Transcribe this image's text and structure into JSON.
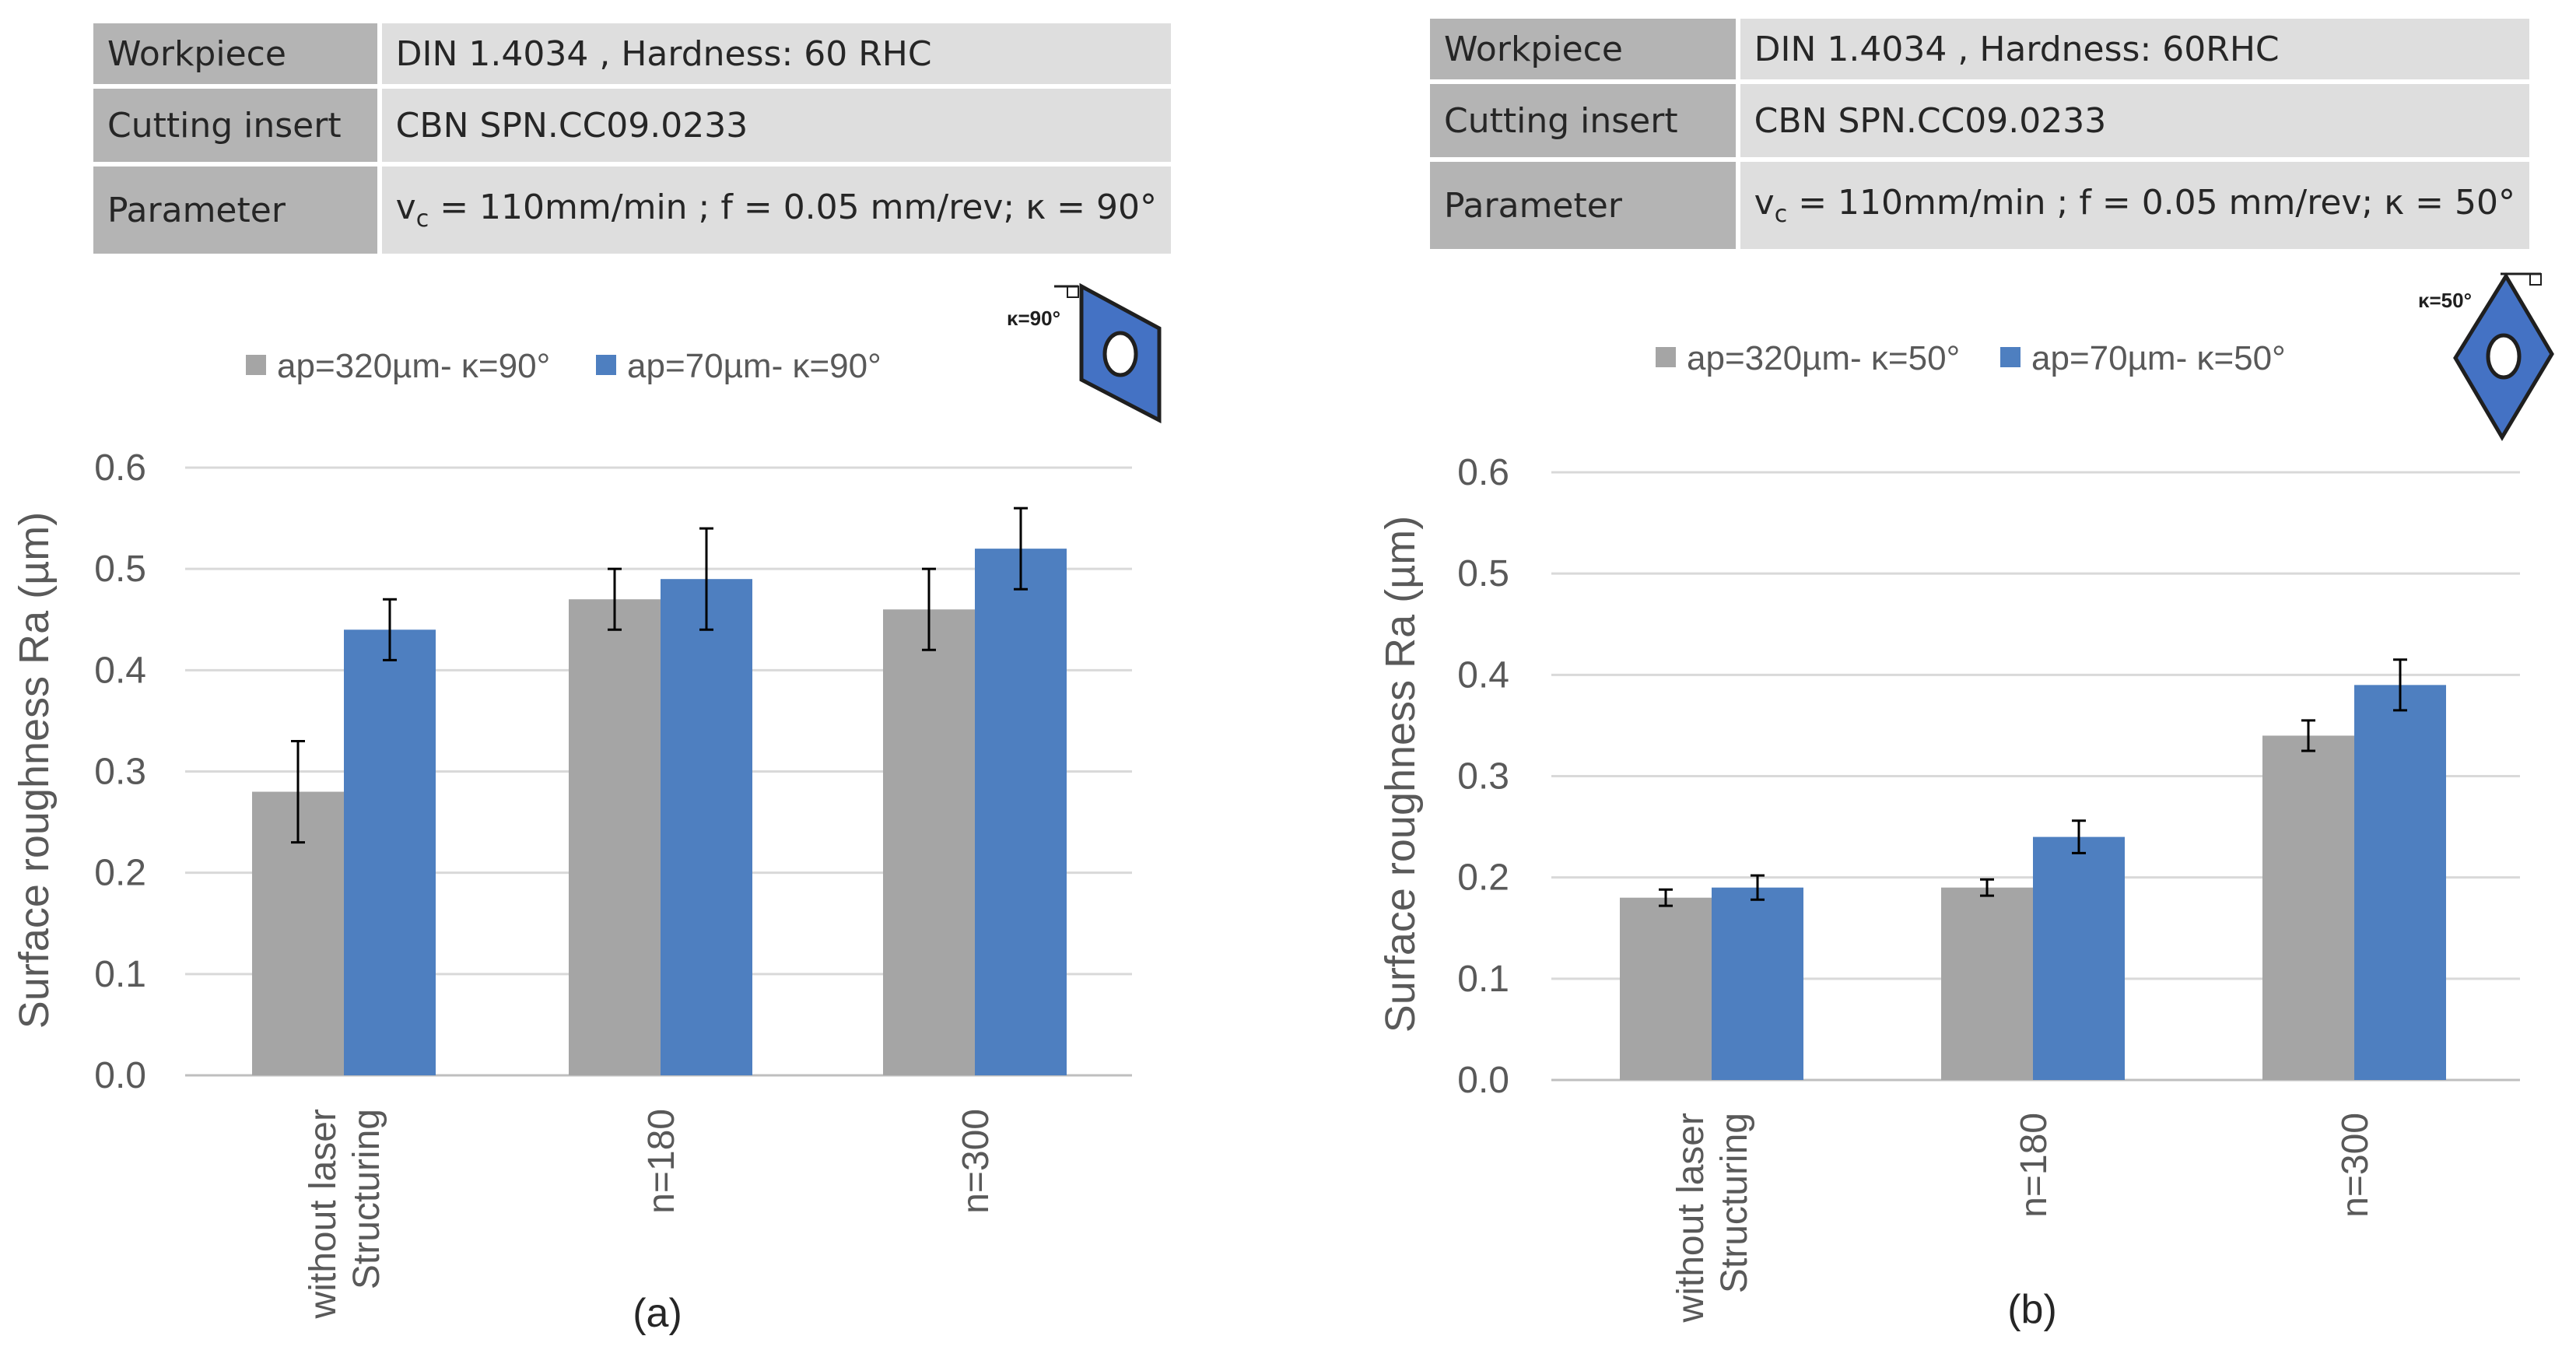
{
  "colors": {
    "series1": "#a5a5a5",
    "series2": "#4e7fc0",
    "grid": "#d9d9d9",
    "axis": "#bfbfbf",
    "text": "#595959",
    "table_key_bg": "#b4b4b4",
    "table_val_bg": "#dedede",
    "insert_fill": "#4472c4"
  },
  "panels": [
    {
      "table": {
        "rows": [
          {
            "key": "Workpiece",
            "value": "DIN 1.4034 , Hardness: 60 RHC"
          },
          {
            "key": "Cutting insert",
            "value": "CBN SPN.CC09.0233"
          },
          {
            "key": "Parameter",
            "v_symbol": "v",
            "v_sub": "c",
            "value": " = 110mm/min ; f = 0.05 mm/rev; κ = 90°"
          }
        ]
      },
      "insert_label": "κ=90°",
      "chart_data": {
        "type": "bar",
        "title": "",
        "caption": "(a)",
        "ylabel": "Surface roughness Ra (µm)",
        "xlabel": "",
        "ylim": [
          0.0,
          0.6
        ],
        "y_ticks": [
          "0.0",
          "0.1",
          "0.2",
          "0.3",
          "0.4",
          "0.5",
          "0.6"
        ],
        "legend_position": "top",
        "categories": [
          [
            "without laser",
            "Structuring"
          ],
          [
            "n=180"
          ],
          [
            "n=300"
          ]
        ],
        "series": [
          {
            "name": "ap=320µm- κ=90°",
            "values": [
              0.28,
              0.47,
              0.46
            ],
            "errors": [
              0.05,
              0.03,
              0.04
            ]
          },
          {
            "name": "ap=70µm- κ=90°",
            "values": [
              0.44,
              0.49,
              0.52
            ],
            "errors": [
              0.03,
              0.05,
              0.04
            ]
          }
        ]
      }
    },
    {
      "table": {
        "rows": [
          {
            "key": "Workpiece",
            "value": "DIN 1.4034 , Hardness: 60RHC"
          },
          {
            "key": "Cutting insert",
            "value": "CBN SPN.CC09.0233"
          },
          {
            "key": "Parameter",
            "v_symbol": "v",
            "v_sub": "c",
            "value": " = 110mm/min ; f = 0.05 mm/rev; κ = 50°"
          }
        ]
      },
      "insert_label": "κ=50°",
      "chart_data": {
        "type": "bar",
        "title": "",
        "caption": "(b)",
        "ylabel": "Surface roughness Ra (µm)",
        "xlabel": "",
        "ylim": [
          0.0,
          0.6
        ],
        "y_ticks": [
          "0.0",
          "0.1",
          "0.2",
          "0.3",
          "0.4",
          "0.5",
          "0.6"
        ],
        "legend_position": "top",
        "categories": [
          [
            "without laser",
            "Structuring"
          ],
          [
            "n=180"
          ],
          [
            "n=300"
          ]
        ],
        "series": [
          {
            "name": "ap=320µm- κ=50°",
            "values": [
              0.18,
              0.19,
              0.34
            ],
            "errors": [
              0.008,
              0.008,
              0.015
            ]
          },
          {
            "name": "ap=70µm- κ=50°",
            "values": [
              0.19,
              0.24,
              0.39
            ],
            "errors": [
              0.012,
              0.016,
              0.025
            ]
          }
        ]
      }
    }
  ]
}
